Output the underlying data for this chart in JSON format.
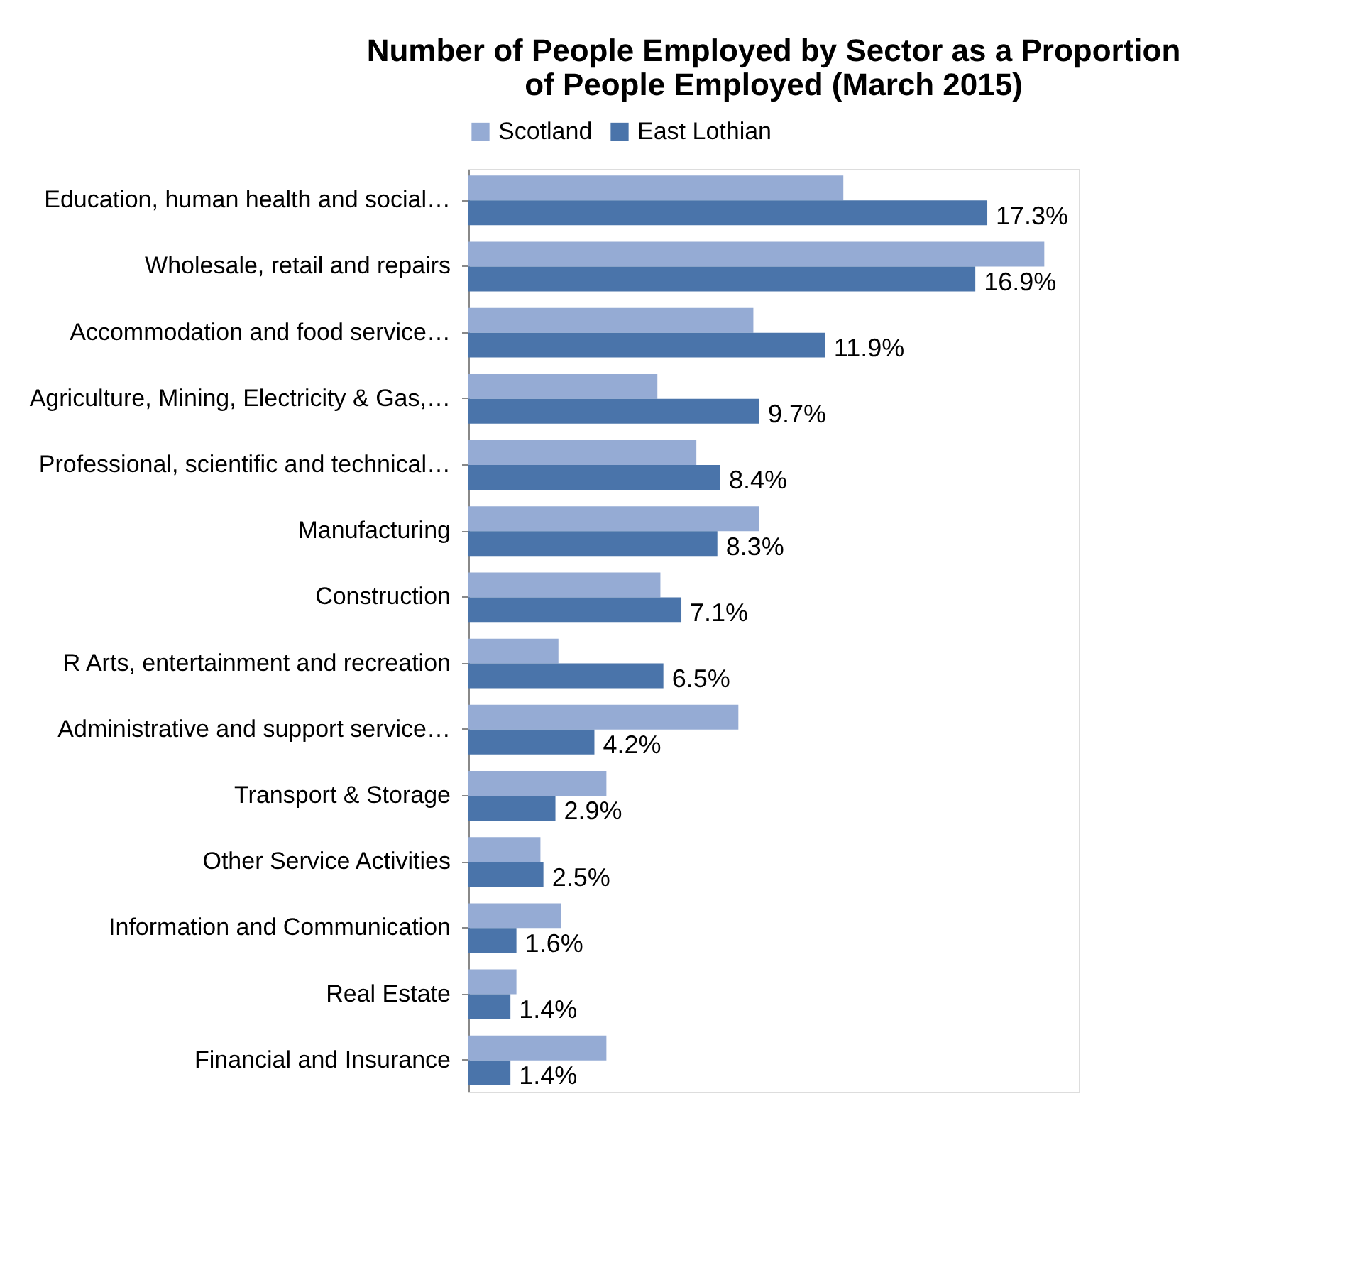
{
  "chart_data": {
    "type": "bar",
    "orientation": "horizontal",
    "title": [
      "Number of People Employed by Sector as a Proportion",
      "of People Employed (March 2015)"
    ],
    "categories": [
      "Education, human health and social…",
      "Wholesale, retail and repairs ",
      "Accommodation and food service…",
      "Agriculture, Mining, Electricity & Gas,…",
      "Professional, scientific and technical…",
      "Manufacturing ",
      "Construction ",
      "R Arts, entertainment and recreation ",
      "Administrative and support service…",
      "Transport  & Storage",
      "Other Service Activities",
      "Information and Communication",
      "Real Estate",
      "Financial and Insurance"
    ],
    "series": [
      {
        "name": "Scotland",
        "color": "#95abd4",
        "values": [
          12.5,
          19.2,
          9.5,
          6.3,
          7.6,
          9.7,
          6.4,
          3.0,
          9.0,
          4.6,
          2.4,
          3.1,
          1.6,
          4.6
        ]
      },
      {
        "name": "East Lothian",
        "color": "#4a74aa",
        "values": [
          17.3,
          16.9,
          11.9,
          9.7,
          8.4,
          8.3,
          7.1,
          6.5,
          4.2,
          2.9,
          2.5,
          1.6,
          1.4,
          1.4
        ],
        "value_labels": [
          "17.3%",
          "16.9%",
          "11.9%",
          "9.7%",
          "8.4%",
          "8.3%",
          "7.1%",
          "6.5%",
          "4.2%",
          "2.9%",
          "2.5%",
          "1.6%",
          "1.4%",
          "1.4%"
        ]
      }
    ],
    "legend": "top",
    "grid": false,
    "tick_labels": "y"
  }
}
